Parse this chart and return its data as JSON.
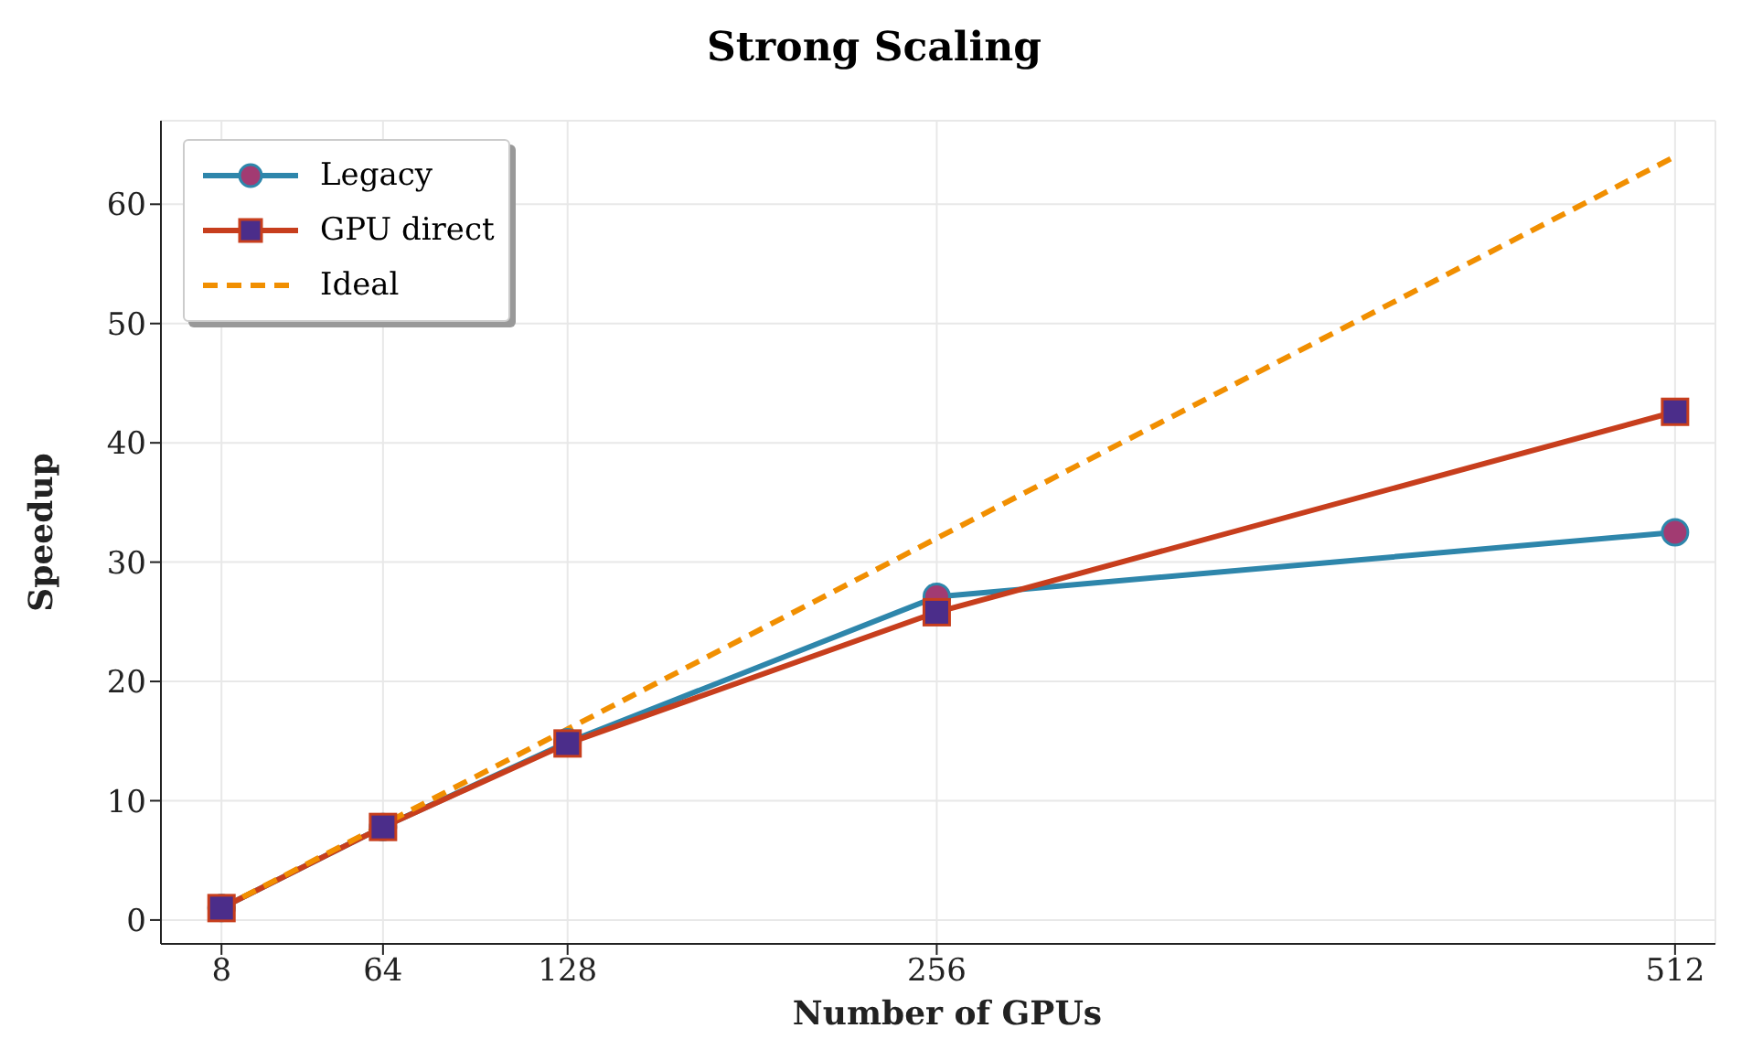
{
  "chart_data": {
    "type": "line",
    "title": "Strong Scaling",
    "xlabel": "Number of GPUs",
    "ylabel": "Speedup",
    "x": [
      8,
      64,
      128,
      256,
      512
    ],
    "series": [
      {
        "name": "Legacy",
        "color": "#2e86ab",
        "marker": "circle",
        "values": [
          1,
          7.8,
          14.9,
          27.1,
          32.5
        ]
      },
      {
        "name": "GPU direct",
        "color": "#c73e1d",
        "marker": "square",
        "values": [
          1,
          7.8,
          14.8,
          25.8,
          42.6
        ]
      },
      {
        "name": "Ideal",
        "color": "#f18f01",
        "marker": "none",
        "line_style": "dashed",
        "values": [
          1,
          8,
          16,
          32,
          64
        ]
      }
    ],
    "xlim": [
      -13,
      526
    ],
    "xticks": [
      8,
      64,
      128,
      256,
      512
    ],
    "ylim": [
      -2,
      67
    ],
    "yticks": [
      0,
      10,
      20,
      30,
      40,
      50,
      60
    ],
    "grid": true,
    "legend": "top left"
  }
}
